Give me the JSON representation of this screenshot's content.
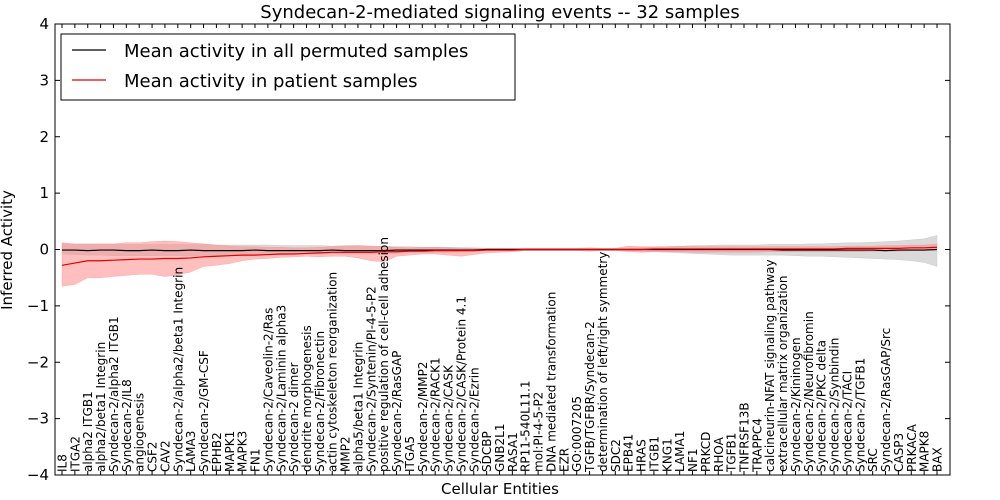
{
  "chart_data": {
    "type": "line",
    "title": "Syndecan-2-mediated signaling events -- 32 samples",
    "xlabel": "Cellular Entities",
    "ylabel": "Inferred Activity",
    "ylim": [
      -4,
      4
    ],
    "yticks": [
      -4,
      -3,
      -2,
      -1,
      0,
      1,
      2,
      3,
      4
    ],
    "legend_position": "upper-left",
    "categories": [
      "IL8",
      "ITGA2",
      "alpha2 ITGB1",
      "alpha2/beta1 Integrin",
      "Syndecan-2/alpha2 ITGB1",
      "Syndecan-2/IL8",
      "angiogenesis",
      "CSF2",
      "CAV2",
      "Syndecan-2/alpha2/beta1 Integrin",
      "LAMA3",
      "Syndecan-2/GM-CSF",
      "EPHB2",
      "MAPK1",
      "MAPK3",
      "FN1",
      "Syndecan-2/Caveolin-2/Ras",
      "Syndecan-2/Laminin alpha3",
      "Syndecan-2 dimer",
      "dendrite morphogenesis",
      "Syndecan-2/Fibronectin",
      "actin cytoskeleton reorganization",
      "MMP2",
      "alpha5/beta1 Integrin",
      "Syndecan-2/Syntenin/PI-4-5-P2",
      "positive regulation of cell-cell adhesion",
      "Syndecan-2/RasGAP",
      "ITGA5",
      "Syndecan-2/MMP2",
      "Syndecan-2/RACK1",
      "Syndecan-2/CASK",
      "Syndecan-2/CASK/Protein 4.1",
      "Syndecan-2/Ezrin",
      "SDCBP",
      "GNB2L1",
      "RASA1",
      "RP11-540L11.1",
      "mol:PI-4-5-P2",
      "DNA mediated transformation",
      "EZR",
      "GO:0007205",
      "TGFB/TGFBR/Syndecan-2",
      "determination of left/right symmetry",
      "SDC2",
      "EPB41",
      "HRAS",
      "ITGB1",
      "KNG1",
      "LAMA1",
      "NF1",
      "PRKCD",
      "RHOA",
      "TGFB1",
      "TNFRSF13B",
      "TRAPPC4",
      "calcineurin-NFAT signaling pathway",
      "extracellular matrix organization",
      "Syndecan-2/Kininogen",
      "Syndecan-2/Neurofibromin",
      "Syndecan-2/PKC delta",
      "Syndecan-2/Synbindin",
      "Syndecan-2/TACI",
      "Syndecan-2/TGFB1",
      "SRC",
      "Syndecan-2/RasGAP/Src",
      "CASP3",
      "PRKACA",
      "MAPK8",
      "BAX"
    ],
    "series": [
      {
        "name": "Mean activity in all permuted samples",
        "color": "#000000",
        "band_color": "#bbbbbb",
        "values": [
          -0.01,
          -0.01,
          -0.02,
          -0.01,
          -0.01,
          -0.02,
          -0.02,
          -0.01,
          -0.02,
          -0.02,
          -0.01,
          -0.02,
          -0.02,
          -0.02,
          -0.02,
          -0.01,
          -0.02,
          -0.02,
          -0.02,
          -0.02,
          -0.02,
          -0.01,
          -0.02,
          -0.02,
          -0.02,
          -0.02,
          -0.01,
          -0.01,
          -0.01,
          -0.01,
          -0.01,
          -0.01,
          -0.01,
          0.0,
          0.0,
          0.0,
          0.0,
          0.0,
          0.0,
          0.0,
          0.0,
          0.0,
          0.0,
          0.0,
          0.0,
          0.0,
          0.0,
          0.0,
          0.0,
          0.0,
          0.0,
          0.0,
          0.0,
          0.0,
          0.0,
          0.0,
          -0.01,
          -0.01,
          -0.01,
          -0.01,
          -0.01,
          -0.01,
          -0.01,
          -0.01,
          -0.02,
          -0.01,
          -0.01,
          -0.01,
          0.0
        ],
        "lower": [
          -0.08,
          -0.09,
          -0.1,
          -0.1,
          -0.11,
          -0.11,
          -0.11,
          -0.11,
          -0.11,
          -0.11,
          -0.11,
          -0.11,
          -0.11,
          -0.11,
          -0.1,
          -0.1,
          -0.1,
          -0.09,
          -0.08,
          -0.08,
          -0.08,
          -0.07,
          -0.08,
          -0.08,
          -0.08,
          -0.07,
          -0.07,
          -0.06,
          -0.05,
          -0.05,
          -0.05,
          -0.04,
          -0.03,
          -0.02,
          -0.02,
          -0.02,
          -0.02,
          -0.02,
          -0.02,
          -0.02,
          -0.02,
          -0.02,
          -0.02,
          -0.02,
          -0.02,
          -0.03,
          -0.04,
          -0.05,
          -0.06,
          -0.07,
          -0.08,
          -0.09,
          -0.1,
          -0.1,
          -0.1,
          -0.1,
          -0.1,
          -0.11,
          -0.12,
          -0.12,
          -0.13,
          -0.14,
          -0.15,
          -0.16,
          -0.17,
          -0.18,
          -0.2,
          -0.23,
          -0.3
        ],
        "upper": [
          0.1,
          0.09,
          0.09,
          0.09,
          0.09,
          0.09,
          0.09,
          0.09,
          0.09,
          0.09,
          0.09,
          0.09,
          0.08,
          0.08,
          0.08,
          0.08,
          0.08,
          0.07,
          0.07,
          0.07,
          0.07,
          0.06,
          0.07,
          0.07,
          0.06,
          0.06,
          0.05,
          0.05,
          0.04,
          0.04,
          0.04,
          0.03,
          0.02,
          0.02,
          0.02,
          0.02,
          0.02,
          0.02,
          0.02,
          0.02,
          0.02,
          0.02,
          0.02,
          0.02,
          0.02,
          0.03,
          0.04,
          0.05,
          0.06,
          0.07,
          0.07,
          0.08,
          0.08,
          0.08,
          0.08,
          0.09,
          0.09,
          0.09,
          0.1,
          0.1,
          0.11,
          0.12,
          0.12,
          0.13,
          0.14,
          0.15,
          0.17,
          0.19,
          0.25
        ]
      },
      {
        "name": "Mean activity in patient samples",
        "color": "#e00000",
        "band_color": "#ff8a8a",
        "values": [
          -0.28,
          -0.24,
          -0.2,
          -0.2,
          -0.19,
          -0.18,
          -0.17,
          -0.17,
          -0.16,
          -0.16,
          -0.15,
          -0.13,
          -0.12,
          -0.11,
          -0.1,
          -0.1,
          -0.09,
          -0.08,
          -0.08,
          -0.07,
          -0.06,
          -0.05,
          -0.05,
          -0.05,
          -0.05,
          -0.04,
          -0.04,
          -0.03,
          -0.03,
          -0.02,
          -0.02,
          -0.02,
          -0.02,
          -0.01,
          -0.01,
          -0.01,
          0.0,
          0.0,
          0.0,
          0.0,
          0.0,
          0.0,
          0.0,
          0.0,
          0.0,
          0.0,
          0.01,
          0.01,
          0.01,
          0.01,
          0.01,
          0.01,
          0.01,
          0.01,
          0.01,
          0.01,
          0.01,
          0.01,
          0.01,
          0.01,
          0.01,
          0.02,
          0.02,
          0.02,
          0.02,
          0.02,
          0.03,
          0.03,
          0.04
        ],
        "lower": [
          -0.65,
          -0.62,
          -0.5,
          -0.5,
          -0.48,
          -0.46,
          -0.44,
          -0.44,
          -0.48,
          -0.45,
          -0.4,
          -0.3,
          -0.28,
          -0.25,
          -0.2,
          -0.17,
          -0.16,
          -0.14,
          -0.13,
          -0.12,
          -0.13,
          -0.12,
          -0.12,
          -0.15,
          -0.2,
          -0.22,
          -0.12,
          -0.1,
          -0.08,
          -0.08,
          -0.1,
          -0.12,
          -0.09,
          -0.06,
          -0.05,
          -0.04,
          -0.02,
          -0.02,
          -0.02,
          -0.02,
          -0.02,
          -0.03,
          -0.02,
          -0.02,
          -0.04,
          -0.05,
          -0.04,
          -0.04,
          -0.04,
          -0.05,
          -0.05,
          -0.05,
          -0.05,
          -0.05,
          -0.05,
          -0.04,
          -0.04,
          -0.04,
          -0.04,
          -0.04,
          -0.04,
          -0.04,
          -0.04,
          -0.03,
          -0.03,
          -0.03,
          -0.02,
          -0.02,
          -0.01
        ],
        "upper": [
          0.12,
          0.1,
          0.1,
          0.1,
          0.1,
          0.12,
          0.12,
          0.14,
          0.15,
          0.14,
          0.12,
          0.1,
          0.08,
          0.06,
          0.05,
          0.05,
          0.04,
          0.04,
          0.03,
          0.03,
          0.04,
          0.05,
          0.06,
          0.07,
          0.06,
          0.05,
          0.04,
          0.03,
          0.04,
          0.04,
          0.03,
          0.03,
          0.03,
          0.02,
          0.02,
          0.02,
          0.02,
          0.02,
          0.02,
          0.02,
          0.02,
          0.03,
          0.02,
          0.02,
          0.06,
          0.05,
          0.05,
          0.05,
          0.05,
          0.05,
          0.05,
          0.05,
          0.05,
          0.05,
          0.05,
          0.05,
          0.05,
          0.05,
          0.05,
          0.05,
          0.05,
          0.06,
          0.06,
          0.06,
          0.07,
          0.07,
          0.08,
          0.08,
          0.1
        ]
      }
    ]
  }
}
